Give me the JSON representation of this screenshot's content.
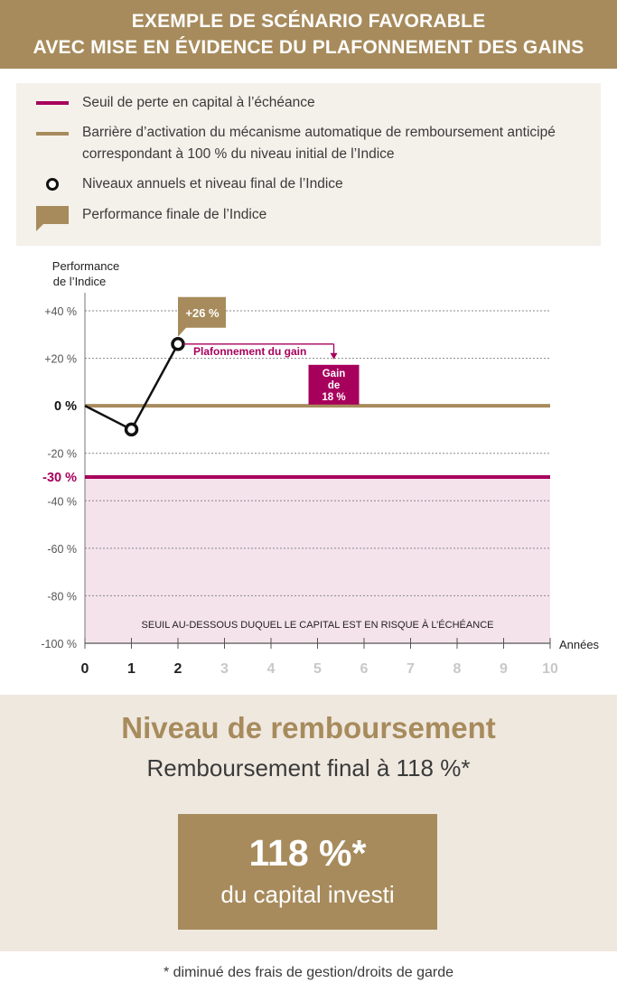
{
  "header": {
    "line1": "EXEMPLE DE SCÉNARIO FAVORABLE",
    "line2": "AVEC MISE EN ÉVIDENCE DU PLAFONNEMENT DES GAINS"
  },
  "legend": {
    "items": [
      {
        "label": "Seuil de perte en capital à l’échéance",
        "color": "#a7005c",
        "icon": "loss-threshold-line"
      },
      {
        "label_line1": "Barrière d’activation du mécanisme automatique de remboursement anticipé",
        "label_line2": "correspondant à 100 % du niveau initial de l’Indice",
        "color": "#a78b5c",
        "icon": "barrier-line"
      },
      {
        "label": "Niveaux annuels et niveau final de l’Indice",
        "color": "#111111",
        "icon": "index-level-circle"
      },
      {
        "label": "Performance finale de l’Indice",
        "color": "#a78b5c",
        "icon": "final-performance-flag"
      }
    ]
  },
  "chart_data": {
    "type": "line",
    "ylabel_line1": "Performance",
    "ylabel_line2": "de l’Indice",
    "xlabel": "Années",
    "x": [
      0,
      1,
      2
    ],
    "y": [
      0,
      -10,
      26
    ],
    "xlim": [
      0,
      10
    ],
    "ylim": [
      -100,
      40
    ],
    "x_ticks": [
      "0",
      "1",
      "2",
      "3",
      "4",
      "5",
      "6",
      "7",
      "8",
      "9",
      "10"
    ],
    "x_ticks_active": 2,
    "y_ticks": [
      {
        "value": 40,
        "label": "+40 %"
      },
      {
        "value": 20,
        "label": "+20 %"
      },
      {
        "value": 0,
        "label": "0 %"
      },
      {
        "value": -20,
        "label": "-20 %"
      },
      {
        "value": -30,
        "label": "-30 %"
      },
      {
        "value": -40,
        "label": "-40 %"
      },
      {
        "value": -60,
        "label": "-60 %"
      },
      {
        "value": -80,
        "label": "-80 %"
      },
      {
        "value": -100,
        "label": "-100 %"
      }
    ],
    "barrier_level": 0,
    "loss_threshold": -30,
    "final_performance_label": "+26 %",
    "cap_label": "Plafonnement du gain",
    "gain_label": [
      "Gain",
      "de",
      "18 %"
    ],
    "cap_arrow_x_end": 5.35,
    "gain_box_center_x": 5.35,
    "risk_zone_label": "SEUIL AU-DESSOUS DUQUEL LE CAPITAL EST EN RISQUE À L’ÉCHÉANCE",
    "colors": {
      "barrier": "#a78b5c",
      "threshold": "#a7005c",
      "risk_zone": "#f5e3ec",
      "line": "#111111",
      "grid": "#888888",
      "inactive_tick": "#c8c8c8"
    },
    "grid": true
  },
  "repayment": {
    "title": "Niveau de remboursement",
    "subtitle": "Remboursement final à 118 %*",
    "box_value": "118 %*",
    "box_text": "du capital investi"
  },
  "footnote": "* diminué des frais de gestion/droits de garde"
}
